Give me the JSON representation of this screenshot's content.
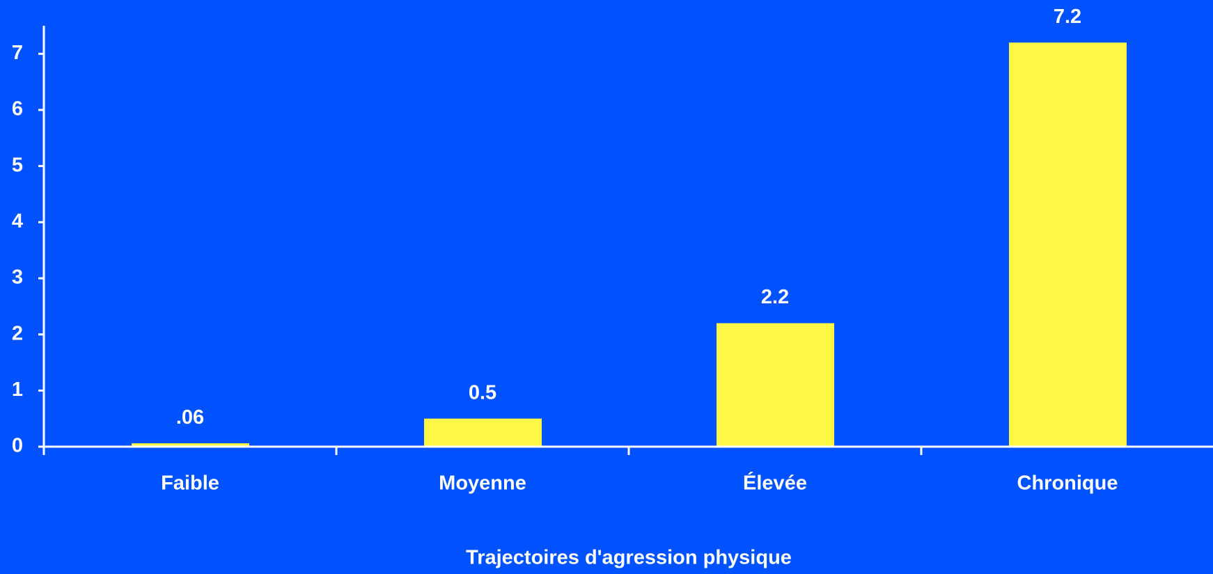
{
  "chart_data": {
    "type": "bar",
    "xlabel": "Trajectoires d'agression physique",
    "categories": [
      "Faible",
      "Moyenne",
      "Élevée",
      "Chronique"
    ],
    "values": [
      0.06,
      0.5,
      2.2,
      7.2
    ],
    "value_labels": [
      ".06",
      "0.5",
      "2.2",
      "7.2"
    ],
    "color": "#fff645",
    "ylim": [
      0,
      7.5
    ],
    "yticks": [
      0,
      1,
      2,
      3,
      4,
      5,
      6,
      7
    ],
    "grid": false
  }
}
